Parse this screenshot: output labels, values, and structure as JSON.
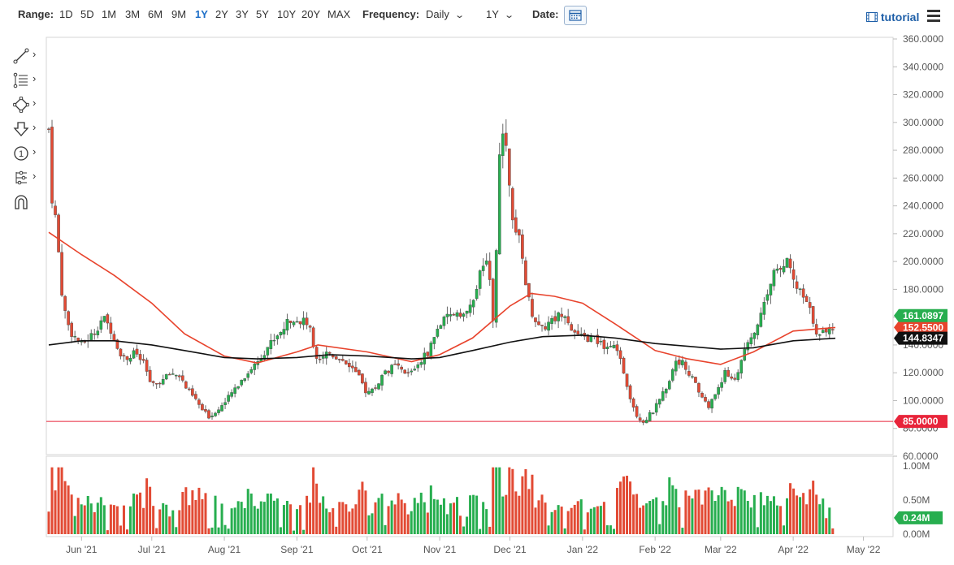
{
  "toolbar": {
    "range_label": "Range:",
    "ranges": [
      "1D",
      "5D",
      "1M",
      "3M",
      "6M",
      "9M",
      "1Y",
      "2Y",
      "3Y",
      "5Y",
      "10Y",
      "20Y",
      "MAX"
    ],
    "active_range": "1Y",
    "frequency_label": "Frequency:",
    "frequency_value": "Daily",
    "period_value": "1Y",
    "date_label": "Date:",
    "tutorial_label": "tutorial"
  },
  "drawing_tools": [
    "line-tool-icon",
    "fibonacci-tool-icon",
    "shape-tool-icon",
    "arrow-tool-icon",
    "annotation-tool-icon",
    "pattern-tool-icon",
    "magnet-tool-icon"
  ],
  "colors": {
    "bull": "#27ae4f",
    "bear": "#e24a34",
    "ma50": "#e8432c",
    "ma200": "#111111",
    "support": "#e8243a",
    "active": "#1e6fc8",
    "last_price_bg": "#27ae4f",
    "ma200_bg": "#111111",
    "support_bg": "#e8243a",
    "ma50_bg": "#e8432c"
  },
  "chart_data": {
    "type": "candlestick",
    "price_axis": {
      "ticks": [
        "60.0000",
        "80.0000",
        "100.0000",
        "120.0000",
        "140.0000",
        "160.0000",
        "180.0000",
        "200.0000",
        "220.0000",
        "240.0000",
        "260.0000",
        "280.0000",
        "300.0000",
        "320.0000",
        "340.0000",
        "360.0000"
      ],
      "range": [
        60,
        360
      ]
    },
    "volume_axis": {
      "ticks": [
        "0.00M",
        "0.50M",
        "1.00M"
      ],
      "range": [
        0,
        1.0
      ]
    },
    "x_ticks": [
      "Jun '21",
      "Jul '21",
      "Aug '21",
      "Sep '21",
      "Oct '21",
      "Nov '21",
      "Dec '21",
      "Jan '22",
      "Feb '22",
      "Mar '22",
      "Apr '22",
      "May '22"
    ],
    "markers": {
      "last_price": "161.0897",
      "ma50_value": "152.5500",
      "ma200_value": "144.8347",
      "support": "85.0000",
      "last_volume": "0.24M"
    },
    "support_level": 85,
    "close_path": [
      [
        "2021-05-18",
        295
      ],
      [
        "2021-05-19",
        250
      ],
      [
        "2021-05-21",
        230
      ],
      [
        "2021-05-24",
        170
      ],
      [
        "2021-05-27",
        150
      ],
      [
        "2021-06-01",
        140
      ],
      [
        "2021-06-04",
        145
      ],
      [
        "2021-06-07",
        150
      ],
      [
        "2021-06-10",
        160
      ],
      [
        "2021-06-14",
        150
      ],
      [
        "2021-06-17",
        135
      ],
      [
        "2021-06-21",
        130
      ],
      [
        "2021-06-24",
        135
      ],
      [
        "2021-06-28",
        125
      ],
      [
        "2021-07-01",
        110
      ],
      [
        "2021-07-06",
        115
      ],
      [
        "2021-07-09",
        120
      ],
      [
        "2021-07-13",
        118
      ],
      [
        "2021-07-16",
        108
      ],
      [
        "2021-07-20",
        100
      ],
      [
        "2021-07-23",
        92
      ],
      [
        "2021-07-26",
        88
      ],
      [
        "2021-07-28",
        92
      ],
      [
        "2021-08-02",
        100
      ],
      [
        "2021-08-06",
        110
      ],
      [
        "2021-08-11",
        120
      ],
      [
        "2021-08-16",
        130
      ],
      [
        "2021-08-20",
        140
      ],
      [
        "2021-08-25",
        150
      ],
      [
        "2021-08-30",
        160
      ],
      [
        "2021-09-02",
        158
      ],
      [
        "2021-09-06",
        155
      ],
      [
        "2021-09-08",
        140
      ],
      [
        "2021-09-10",
        130
      ],
      [
        "2021-09-14",
        135
      ],
      [
        "2021-09-20",
        130
      ],
      [
        "2021-09-24",
        125
      ],
      [
        "2021-09-28",
        115
      ],
      [
        "2021-10-01",
        105
      ],
      [
        "2021-10-05",
        110
      ],
      [
        "2021-10-08",
        120
      ],
      [
        "2021-10-13",
        125
      ],
      [
        "2021-10-18",
        118
      ],
      [
        "2021-10-22",
        125
      ],
      [
        "2021-10-27",
        135
      ],
      [
        "2021-11-01",
        155
      ],
      [
        "2021-11-05",
        160
      ],
      [
        "2021-11-09",
        165
      ],
      [
        "2021-11-12",
        160
      ],
      [
        "2021-11-16",
        175
      ],
      [
        "2021-11-18",
        190
      ],
      [
        "2021-11-22",
        200
      ],
      [
        "2021-11-24",
        150
      ],
      [
        "2021-11-25",
        200
      ],
      [
        "2021-11-26",
        270
      ],
      [
        "2021-11-29",
        295
      ],
      [
        "2021-12-01",
        245
      ],
      [
        "2021-12-03",
        225
      ],
      [
        "2021-12-06",
        210
      ],
      [
        "2021-12-08",
        180
      ],
      [
        "2021-12-10",
        165
      ],
      [
        "2021-12-14",
        150
      ],
      [
        "2021-12-17",
        155
      ],
      [
        "2021-12-21",
        160
      ],
      [
        "2021-12-24",
        165
      ],
      [
        "2021-12-28",
        150
      ],
      [
        "2021-12-31",
        145
      ],
      [
        "2022-01-05",
        145
      ],
      [
        "2022-01-10",
        140
      ],
      [
        "2022-01-14",
        140
      ],
      [
        "2022-01-18",
        125
      ],
      [
        "2022-01-21",
        105
      ],
      [
        "2022-01-24",
        90
      ],
      [
        "2022-01-27",
        85
      ],
      [
        "2022-01-31",
        92
      ],
      [
        "2022-02-03",
        100
      ],
      [
        "2022-02-07",
        115
      ],
      [
        "2022-02-10",
        130
      ],
      [
        "2022-02-14",
        125
      ],
      [
        "2022-02-17",
        115
      ],
      [
        "2022-02-22",
        100
      ],
      [
        "2022-02-24",
        95
      ],
      [
        "2022-02-28",
        110
      ],
      [
        "2022-03-03",
        120
      ],
      [
        "2022-03-07",
        115
      ],
      [
        "2022-03-10",
        130
      ],
      [
        "2022-03-14",
        145
      ],
      [
        "2022-03-17",
        155
      ],
      [
        "2022-03-21",
        175
      ],
      [
        "2022-03-24",
        195
      ],
      [
        "2022-03-28",
        200
      ],
      [
        "2022-03-30",
        198
      ],
      [
        "2022-04-01",
        185
      ],
      [
        "2022-04-05",
        175
      ],
      [
        "2022-04-08",
        165
      ],
      [
        "2022-04-12",
        145
      ],
      [
        "2022-04-14",
        150
      ],
      [
        "2022-04-18",
        153
      ],
      [
        "2022-04-19",
        161.09
      ]
    ],
    "ma50_path": [
      [
        "2021-05-18",
        221
      ],
      [
        "2021-06-01",
        205
      ],
      [
        "2021-06-15",
        190
      ],
      [
        "2021-07-01",
        170
      ],
      [
        "2021-07-15",
        148
      ],
      [
        "2021-08-01",
        132
      ],
      [
        "2021-08-15",
        127
      ],
      [
        "2021-09-01",
        135
      ],
      [
        "2021-09-10",
        140
      ],
      [
        "2021-10-01",
        135
      ],
      [
        "2021-10-20",
        128
      ],
      [
        "2021-11-01",
        133
      ],
      [
        "2021-11-15",
        145
      ],
      [
        "2021-12-01",
        168
      ],
      [
        "2021-12-10",
        177
      ],
      [
        "2021-12-20",
        175
      ],
      [
        "2022-01-01",
        170
      ],
      [
        "2022-01-15",
        155
      ],
      [
        "2022-02-01",
        136
      ],
      [
        "2022-02-15",
        130
      ],
      [
        "2022-03-01",
        126
      ],
      [
        "2022-03-15",
        135
      ],
      [
        "2022-04-01",
        150
      ],
      [
        "2022-04-19",
        152.55
      ]
    ],
    "ma200_path": [
      [
        "2021-05-18",
        140
      ],
      [
        "2021-06-01",
        143
      ],
      [
        "2021-06-15",
        143
      ],
      [
        "2021-07-01",
        140
      ],
      [
        "2021-07-15",
        136
      ],
      [
        "2021-08-01",
        131
      ],
      [
        "2021-08-15",
        130
      ],
      [
        "2021-09-01",
        131
      ],
      [
        "2021-09-15",
        133
      ],
      [
        "2021-10-01",
        132
      ],
      [
        "2021-10-20",
        130
      ],
      [
        "2021-11-01",
        131
      ],
      [
        "2021-11-15",
        136
      ],
      [
        "2021-12-01",
        142
      ],
      [
        "2021-12-15",
        146
      ],
      [
        "2022-01-01",
        147
      ],
      [
        "2022-01-15",
        145
      ],
      [
        "2022-02-01",
        141
      ],
      [
        "2022-02-15",
        139
      ],
      [
        "2022-03-01",
        137
      ],
      [
        "2022-03-15",
        138
      ],
      [
        "2022-04-01",
        143
      ],
      [
        "2022-04-19",
        144.83
      ]
    ]
  }
}
